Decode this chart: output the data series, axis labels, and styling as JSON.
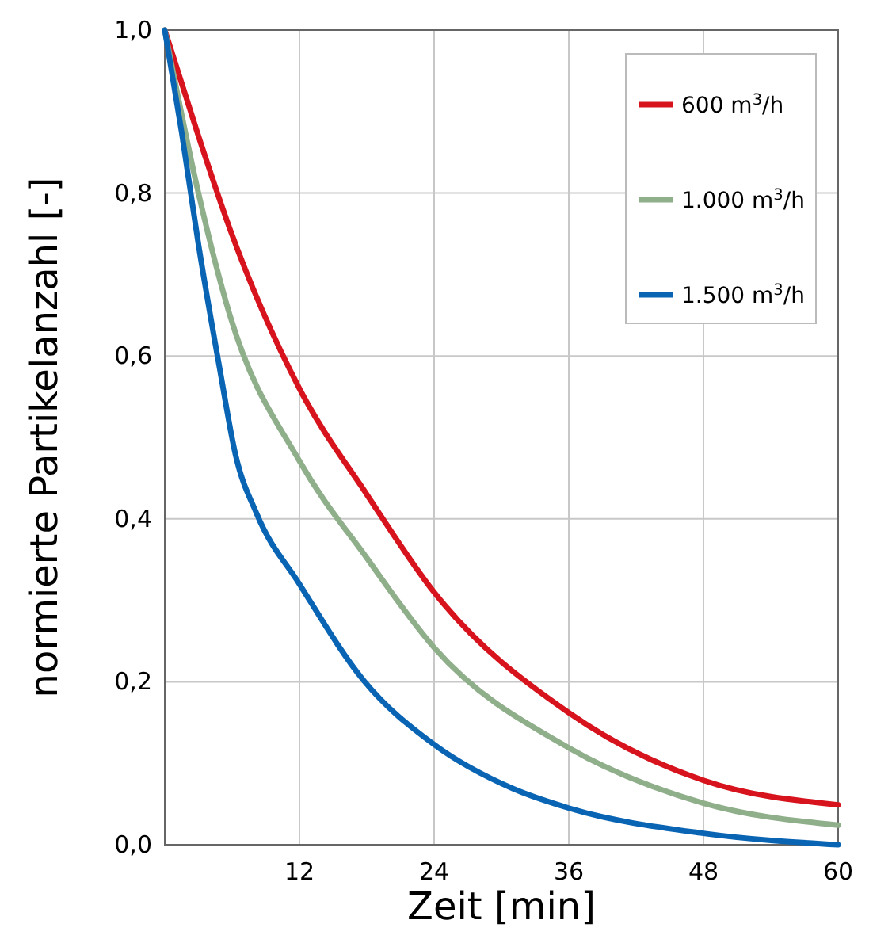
{
  "chart_data": {
    "type": "line",
    "xlabel": "Zeit [min]",
    "ylabel": "normierte Partikelanzahl [-]",
    "xlim": [
      0,
      60
    ],
    "xticks": [
      {
        "value": 0,
        "label": null
      },
      12,
      24,
      36,
      48,
      60
    ],
    "ylim": [
      0,
      1
    ],
    "yticks": [
      {
        "value": 0,
        "label": "0,0"
      },
      {
        "value": 0.2,
        "label": "0,2"
      },
      {
        "value": 0.4,
        "label": "0,4"
      },
      {
        "value": 0.6,
        "label": "0,6"
      },
      {
        "value": 0.8,
        "label": "0,8"
      },
      {
        "value": 1,
        "label": "1,0"
      }
    ],
    "grid": true,
    "legend": "top right",
    "marker": "none",
    "line_style": "solid",
    "series": [
      {
        "name": "600 m$^{3}$/h",
        "color": "#d7141e",
        "x": [
          0,
          3,
          5.8,
          12,
          18,
          24,
          36,
          48,
          60
        ],
        "values": [
          1,
          0.87,
          0.756,
          0.56,
          0.43,
          0.31,
          0.162,
          0.079,
          0.049
        ]
      },
      {
        "name": "1.000 m$^{3}$/h",
        "color": "#8fae8a",
        "x": [
          0,
          3,
          5.8,
          12,
          18,
          24,
          36,
          48,
          60
        ],
        "values": [
          1,
          0.8,
          0.65,
          0.471,
          0.352,
          0.242,
          0.119,
          0.051,
          0.024
        ]
      },
      {
        "name": "1.500 m$^{3}$/h",
        "color": "#0a64b4",
        "x": [
          0,
          1.5,
          3,
          4.9,
          6.3,
          8.2,
          12,
          17.7,
          24,
          31,
          36,
          48,
          60
        ],
        "values": [
          1,
          0.875,
          0.737,
          0.584,
          0.479,
          0.406,
          0.32,
          0.202,
          0.123,
          0.069,
          0.045,
          0.014,
          0
        ]
      }
    ]
  }
}
